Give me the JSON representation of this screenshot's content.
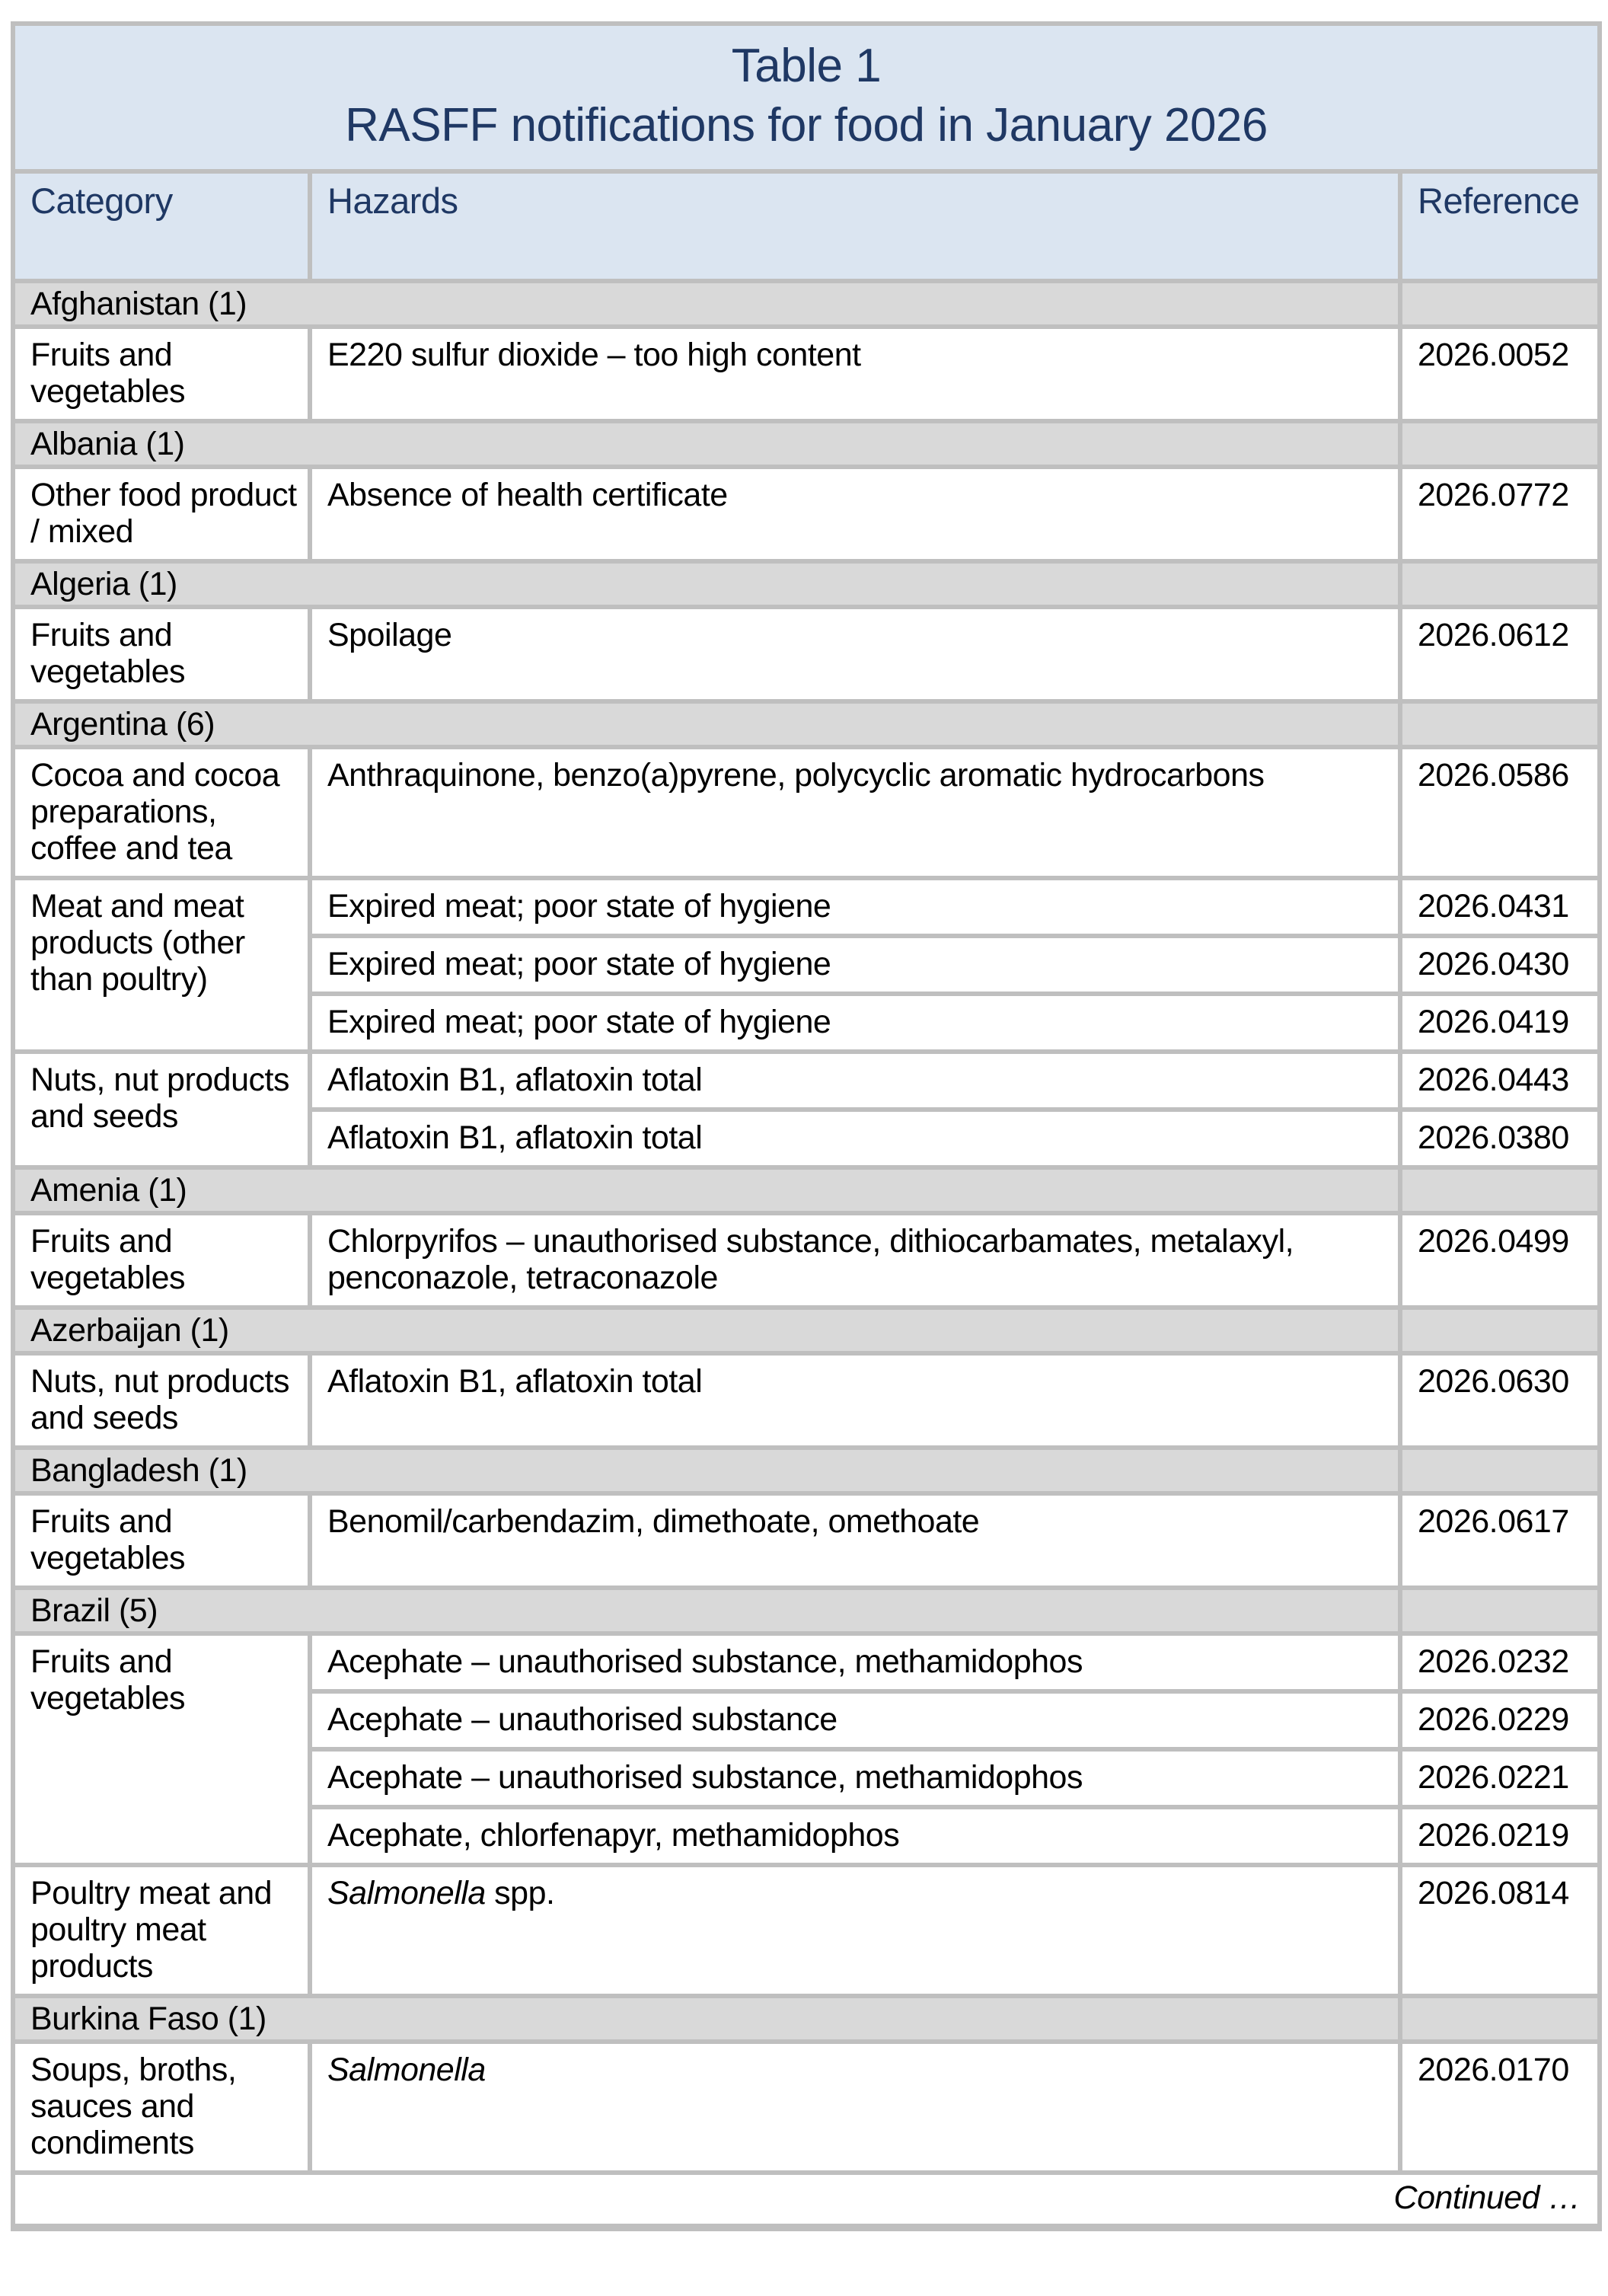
{
  "title": {
    "line1": "Table 1",
    "line2": "RASFF notifications for food in January 2026"
  },
  "columns": [
    "Category",
    "Hazards",
    "Reference"
  ],
  "sections": [
    {
      "country": "Afghanistan (1)",
      "groups": [
        {
          "category": "Fruits and vegetables",
          "rows": [
            {
              "hazard": "E220 sulfur dioxide – too high content",
              "reference": "2026.0052"
            }
          ]
        }
      ]
    },
    {
      "country": "Albania (1)",
      "groups": [
        {
          "category": "Other food product / mixed",
          "rows": [
            {
              "hazard": "Absence of health certificate",
              "reference": "2026.0772"
            }
          ]
        }
      ]
    },
    {
      "country": "Algeria (1)",
      "groups": [
        {
          "category": "Fruits and vegetables",
          "rows": [
            {
              "hazard": "Spoilage",
              "reference": "2026.0612"
            }
          ]
        }
      ]
    },
    {
      "country": "Argentina (6)",
      "groups": [
        {
          "category": "Cocoa and cocoa preparations, coffee and tea",
          "rows": [
            {
              "hazard": "Anthraquinone, benzo(a)pyrene, polycyclic aromatic hydrocarbons",
              "reference": "2026.0586"
            }
          ]
        },
        {
          "category": "Meat and meat products (other than poultry)",
          "rows": [
            {
              "hazard": "Expired meat; poor state of hygiene",
              "reference": "2026.0431"
            },
            {
              "hazard": "Expired meat; poor state of hygiene",
              "reference": "2026.0430"
            },
            {
              "hazard": "Expired meat; poor state of hygiene",
              "reference": "2026.0419"
            }
          ]
        },
        {
          "category": "Nuts, nut products and seeds",
          "rows": [
            {
              "hazard": "Aflatoxin B1, aflatoxin total",
              "reference": "2026.0443"
            },
            {
              "hazard": "Aflatoxin B1, aflatoxin total",
              "reference": "2026.0380"
            }
          ]
        }
      ]
    },
    {
      "country": "Amenia (1)",
      "groups": [
        {
          "category": "Fruits and vegetables",
          "rows": [
            {
              "hazard": "Chlorpyrifos – unauthorised substance, dithiocarbamates, metalaxyl, penconazole, tetraconazole",
              "reference": "2026.0499"
            }
          ]
        }
      ]
    },
    {
      "country": "Azerbaijan (1)",
      "groups": [
        {
          "category": "Nuts, nut products and seeds",
          "rows": [
            {
              "hazard": "Aflatoxin B1, aflatoxin total",
              "reference": "2026.0630"
            }
          ]
        }
      ]
    },
    {
      "country": "Bangladesh (1)",
      "groups": [
        {
          "category": "Fruits and vegetables",
          "rows": [
            {
              "hazard": "Benomil/carbendazim, dimethoate, omethoate",
              "reference": "2026.0617"
            }
          ]
        }
      ]
    },
    {
      "country": "Brazil (5)",
      "groups": [
        {
          "category": "Fruits and vegetables",
          "rows": [
            {
              "hazard": "Acephate – unauthorised substance, methamidophos",
              "reference": "2026.0232"
            },
            {
              "hazard": "Acephate – unauthorised substance",
              "reference": "2026.0229"
            },
            {
              "hazard": "Acephate – unauthorised substance, methamidophos",
              "reference": "2026.0221"
            },
            {
              "hazard": "Acephate, chlorfenapyr, methamidophos",
              "reference": "2026.0219"
            }
          ]
        },
        {
          "category": "Poultry meat and poultry meat products",
          "rows": [
            {
              "hazard_italic": "Salmonella",
              "hazard": " spp.",
              "reference": "2026.0814"
            }
          ]
        }
      ]
    },
    {
      "country": "Burkina Faso (1)",
      "groups": [
        {
          "category": "Soups, broths, sauces and condiments",
          "rows": [
            {
              "hazard_italic": "Salmonella",
              "hazard": "",
              "reference": "2026.0170"
            }
          ]
        }
      ]
    }
  ],
  "footer": {
    "note": "Continued …"
  },
  "colors": {
    "title_header_bg": "#dbe5f1",
    "title_header_text": "#1f3864",
    "country_row_bg": "#d9d9d9",
    "data_row_bg": "#ffffff",
    "border": "#bfbfbf",
    "body_text": "#000000"
  }
}
